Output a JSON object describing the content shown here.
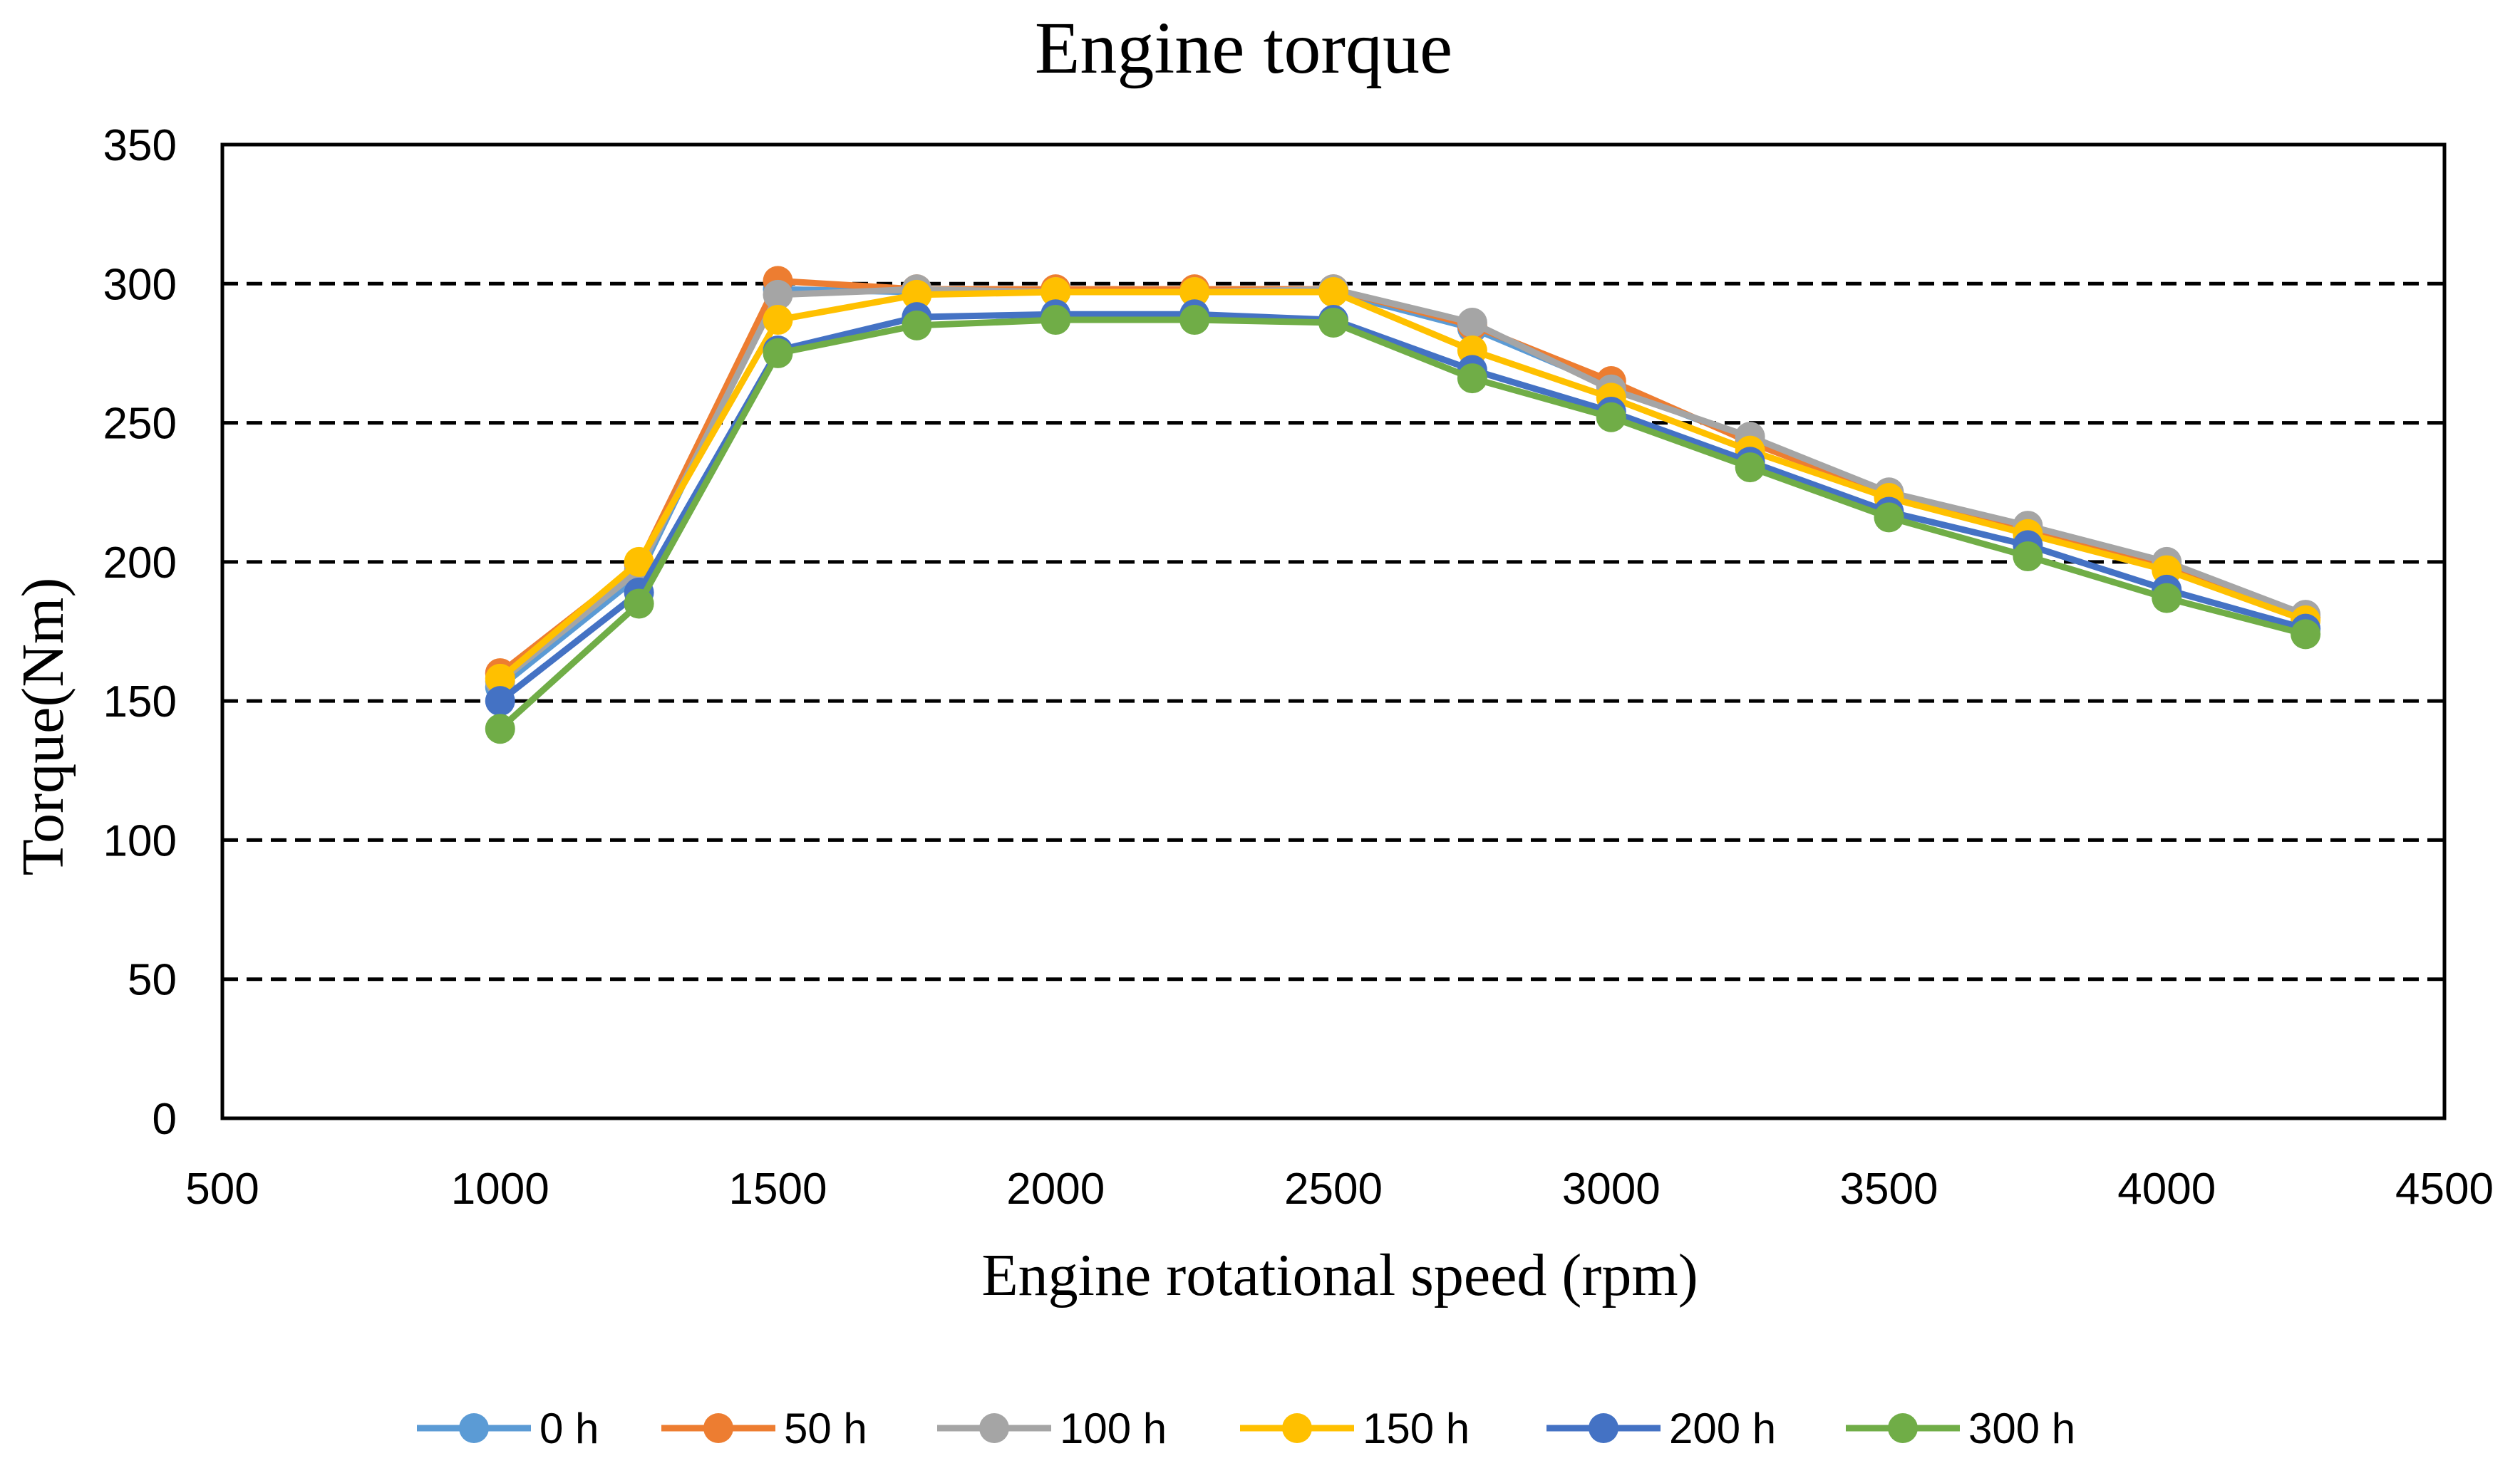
{
  "chart_data": {
    "type": "line",
    "title": "Engine torque",
    "xlabel": "Engine rotational speed (rpm)",
    "ylabel": "Torque(Nm)",
    "xlim": [
      500,
      4500
    ],
    "ylim": [
      0,
      350
    ],
    "xticks": [
      500,
      1000,
      1500,
      2000,
      2500,
      3000,
      3500,
      4000,
      4500
    ],
    "yticks": [
      0,
      50,
      100,
      150,
      200,
      250,
      300,
      350
    ],
    "grid": "horizontal dashed",
    "legend_position": "bottom",
    "x": [
      1000,
      1250,
      1500,
      1750,
      2000,
      2250,
      2500,
      2750,
      3000,
      3250,
      3500,
      3750,
      4000,
      4250
    ],
    "series": [
      {
        "name": "0 h",
        "color": "#5b9bd5",
        "values": [
          155,
          195,
          298,
          297,
          297,
          297,
          297,
          284,
          263,
          244,
          224,
          212,
          198,
          180
        ]
      },
      {
        "name": "50 h",
        "color": "#ed7d31",
        "values": [
          160,
          199,
          301,
          298,
          298,
          298,
          298,
          285,
          265,
          243,
          224,
          212,
          199,
          180
        ]
      },
      {
        "name": "100 h",
        "color": "#a5a5a5",
        "values": [
          157,
          197,
          296,
          298,
          297,
          297,
          298,
          286,
          262,
          245,
          225,
          213,
          200,
          181
        ]
      },
      {
        "name": "150 h",
        "color": "#ffc000",
        "values": [
          158,
          200,
          287,
          296,
          297,
          297,
          297,
          276,
          259,
          240,
          223,
          210,
          197,
          179
        ]
      },
      {
        "name": "200 h",
        "color": "#4472c4",
        "values": [
          150,
          189,
          276,
          288,
          289,
          289,
          287,
          269,
          254,
          236,
          218,
          206,
          190,
          176
        ]
      },
      {
        "name": "300 h",
        "color": "#70ad47",
        "values": [
          140,
          185,
          275,
          285,
          287,
          287,
          286,
          266,
          252,
          234,
          216,
          202,
          187,
          174
        ]
      }
    ]
  }
}
